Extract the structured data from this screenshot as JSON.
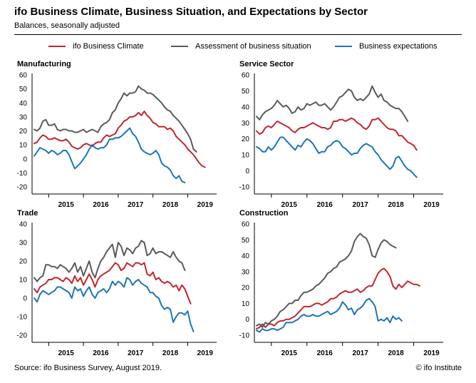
{
  "header": {
    "title": "ifo Business Climate, Business Situation, and Expectations by Sector",
    "subtitle": "Balances, seasonally adjusted"
  },
  "legend": [
    {
      "label": "ifo Business Climate",
      "color": "#C0272D"
    },
    {
      "label": "Assessment of business situation",
      "color": "#5A5A5A"
    },
    {
      "label": "Business expectations",
      "color": "#1B75BB"
    }
  ],
  "footer": {
    "source": "Source: ifo Business Survey, August 2019.",
    "credit": "© ifo Institute"
  },
  "chart_data": [
    {
      "type": "line",
      "title": "Manufacturing",
      "x_start": "2014-08",
      "year_labels": [
        "2015",
        "2016",
        "2017",
        "2018",
        "2019"
      ],
      "ylim": [
        -20,
        60
      ],
      "yticks": [
        -20,
        -10,
        0,
        10,
        20,
        30,
        40,
        50,
        60
      ],
      "grid": false,
      "series": [
        {
          "name": "ifo Business Climate",
          "color": "#C0272D",
          "values": [
            11,
            12,
            15,
            17,
            16,
            14,
            14,
            15,
            14,
            13,
            13,
            14,
            12,
            9,
            8,
            7,
            8,
            10,
            11,
            10,
            9,
            11,
            12,
            12,
            15,
            17,
            16,
            17,
            18,
            22,
            24,
            27,
            28,
            30,
            30,
            31,
            33,
            31,
            34,
            31,
            29,
            26,
            25,
            23,
            23,
            23,
            21,
            22,
            20,
            16,
            14,
            12,
            10,
            7,
            5,
            3,
            0,
            -3,
            -5,
            -6
          ]
        },
        {
          "name": "Assessment of business situation",
          "color": "#5A5A5A",
          "values": [
            21,
            20,
            22,
            27,
            28,
            24,
            24,
            25,
            21,
            20,
            21,
            21,
            20,
            20,
            19,
            19,
            20,
            21,
            19,
            20,
            21,
            20,
            19,
            23,
            25,
            26,
            28,
            33,
            35,
            40,
            43,
            47,
            45,
            47,
            47,
            48,
            52,
            50,
            49,
            47,
            47,
            46,
            44,
            42,
            40,
            37,
            35,
            34,
            31,
            29,
            27,
            24,
            21,
            18,
            14,
            7,
            5
          ]
        },
        {
          "name": "Business expectations",
          "color": "#1B75BB",
          "values": [
            2,
            5,
            8,
            7,
            6,
            4,
            6,
            5,
            3,
            4,
            6,
            6,
            3,
            -2,
            -7,
            -5,
            -3,
            0,
            3,
            7,
            10,
            8,
            7,
            8,
            8,
            10,
            14,
            14,
            15,
            15,
            16,
            18,
            20,
            22,
            18,
            16,
            12,
            7,
            5,
            4,
            3,
            4,
            6,
            3,
            -3,
            -5,
            -6,
            -8,
            -12,
            -14,
            -12,
            -16,
            -17
          ]
        }
      ]
    },
    {
      "type": "line",
      "title": "Service Sector",
      "x_start": "2014-08",
      "year_labels": [
        "2015",
        "2016",
        "2017",
        "2018",
        "2019"
      ],
      "ylim": [
        -10,
        60
      ],
      "yticks": [
        -10,
        0,
        10,
        20,
        30,
        40,
        50,
        60
      ],
      "grid": false,
      "series": [
        {
          "name": "ifo Business Climate",
          "color": "#C0272D",
          "values": [
            25,
            23,
            24,
            27,
            28,
            27,
            29,
            31,
            30,
            29,
            28,
            27,
            25,
            24,
            26,
            27,
            27,
            28,
            29,
            30,
            29,
            28,
            27,
            27,
            26,
            27,
            31,
            31,
            32,
            32,
            31,
            32,
            33,
            32,
            30,
            29,
            27,
            26,
            28,
            32,
            32,
            33,
            31,
            29,
            27,
            26,
            26,
            25,
            22,
            22,
            20,
            18,
            17,
            16,
            13
          ]
        },
        {
          "name": "Assessment of business situation",
          "color": "#5A5A5A",
          "values": [
            34,
            32,
            35,
            37,
            38,
            39,
            41,
            44,
            42,
            40,
            41,
            39,
            36,
            37,
            40,
            38,
            39,
            42,
            41,
            42,
            43,
            41,
            41,
            42,
            40,
            38,
            40,
            43,
            46,
            47,
            49,
            51,
            50,
            46,
            44,
            45,
            44,
            46,
            48,
            53,
            49,
            46,
            48,
            44,
            43,
            41,
            40,
            39,
            39,
            37,
            34,
            31
          ]
        },
        {
          "name": "Business expectations",
          "color": "#1B75BB",
          "values": [
            15,
            14,
            12,
            12,
            15,
            13,
            15,
            18,
            21,
            21,
            19,
            17,
            15,
            13,
            16,
            15,
            18,
            20,
            19,
            17,
            14,
            11,
            12,
            12,
            15,
            16,
            18,
            19,
            18,
            15,
            14,
            12,
            10,
            11,
            11,
            14,
            16,
            17,
            16,
            15,
            12,
            10,
            7,
            5,
            3,
            1,
            3,
            8,
            9,
            6,
            3,
            1,
            0,
            -2,
            -4
          ]
        }
      ]
    },
    {
      "type": "line",
      "title": "Trade",
      "x_start": "2014-08",
      "year_labels": [
        "2015",
        "2016",
        "2017",
        "2018",
        "2019"
      ],
      "ylim": [
        -20,
        40
      ],
      "yticks": [
        -20,
        -10,
        0,
        10,
        20,
        30,
        40
      ],
      "grid": false,
      "series": [
        {
          "name": "ifo Business Climate",
          "color": "#C0272D",
          "values": [
            5,
            3,
            6,
            7,
            8,
            10,
            10,
            11,
            11,
            10,
            9,
            11,
            10,
            8,
            12,
            9,
            11,
            7,
            10,
            13,
            10,
            6,
            10,
            12,
            13,
            14,
            15,
            17,
            19,
            18,
            15,
            16,
            19,
            18,
            17,
            19,
            19,
            18,
            19,
            13,
            12,
            14,
            10,
            11,
            9,
            8,
            9,
            8,
            6,
            7,
            4,
            7,
            5,
            1,
            -3
          ]
        },
        {
          "name": "Assessment of business situation",
          "color": "#5A5A5A",
          "values": [
            11,
            9,
            11,
            12,
            18,
            18,
            17,
            17,
            16,
            18,
            17,
            16,
            14,
            16,
            19,
            14,
            17,
            12,
            16,
            20,
            14,
            11,
            16,
            20,
            22,
            25,
            27,
            29,
            22,
            30,
            28,
            23,
            27,
            26,
            24,
            27,
            28,
            31,
            30,
            23,
            24,
            27,
            24,
            25,
            25,
            24,
            23,
            22,
            25,
            22,
            20,
            19,
            15
          ]
        },
        {
          "name": "Business expectations",
          "color": "#1B75BB",
          "values": [
            0,
            -2,
            2,
            4,
            3,
            2,
            3,
            4,
            6,
            6,
            5,
            4,
            3,
            0,
            6,
            4,
            5,
            1,
            4,
            6,
            2,
            0,
            3,
            4,
            5,
            3,
            5,
            9,
            7,
            9,
            8,
            6,
            11,
            10,
            7,
            9,
            10,
            8,
            7,
            6,
            3,
            3,
            1,
            0,
            -4,
            -6,
            -5,
            -6,
            -13,
            -10,
            -8,
            -8,
            -9,
            -7,
            -14,
            -18
          ]
        }
      ]
    },
    {
      "type": "line",
      "title": "Construction",
      "x_start": "2014-08",
      "year_labels": [
        "2015",
        "2016",
        "2017",
        "2018",
        "2019"
      ],
      "ylim": [
        -10,
        60
      ],
      "yticks": [
        -10,
        0,
        10,
        20,
        30,
        40,
        50,
        60
      ],
      "grid": false,
      "series": [
        {
          "name": "ifo Business Climate",
          "color": "#C0272D",
          "values": [
            -6,
            -5,
            -3,
            -5,
            -3,
            -3,
            -4,
            -2,
            -1,
            -1,
            0,
            0,
            1,
            2,
            4,
            6,
            8,
            8,
            8,
            9,
            10,
            10,
            9,
            10,
            11,
            13,
            13,
            14,
            16,
            17,
            18,
            17,
            17,
            18,
            19,
            17,
            18,
            20,
            21,
            21,
            25,
            29,
            31,
            32,
            30,
            27,
            21,
            19,
            22,
            20,
            22,
            24,
            23,
            22,
            22,
            21
          ]
        },
        {
          "name": "Assessment of business situation",
          "color": "#5A5A5A",
          "values": [
            -4,
            -3,
            -5,
            -2,
            -3,
            -1,
            0,
            2,
            5,
            6,
            8,
            10,
            10,
            12,
            12,
            15,
            17,
            17,
            18,
            19,
            21,
            22,
            24,
            26,
            29,
            30,
            32,
            33,
            36,
            37,
            38,
            40,
            43,
            49,
            52,
            54,
            52,
            51,
            47,
            40,
            39,
            44,
            48,
            50,
            49,
            47,
            46,
            45
          ]
        },
        {
          "name": "Business expectations",
          "color": "#1B75BB",
          "values": [
            -7,
            -8,
            -6,
            -7,
            -7,
            -6,
            -6,
            -7,
            -6,
            -5,
            -2,
            -2,
            -2,
            -1,
            0,
            2,
            3,
            2,
            2,
            3,
            2,
            2,
            3,
            4,
            5,
            3,
            4,
            5,
            7,
            11,
            9,
            6,
            7,
            3,
            6,
            7,
            9,
            12,
            13,
            11,
            8,
            -1,
            0,
            -1,
            1,
            -2,
            2,
            0,
            1,
            -1
          ]
        }
      ]
    }
  ]
}
